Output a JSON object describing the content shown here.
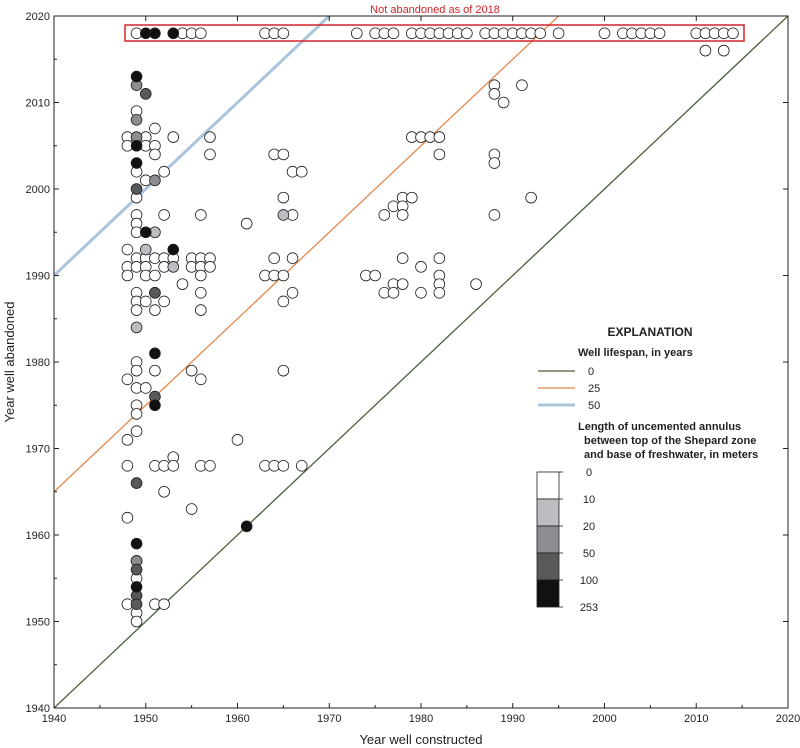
{
  "chart_data": {
    "type": "scatter",
    "xlabel": "Year well constructed",
    "ylabel": "Year well abandoned",
    "xlim": [
      1940,
      2020
    ],
    "ylim": [
      1940,
      2020
    ],
    "x_ticks": [
      1940,
      1950,
      1960,
      1970,
      1980,
      1990,
      2000,
      2010,
      2020
    ],
    "y_ticks": [
      1940,
      1950,
      1960,
      1970,
      1980,
      1990,
      2000,
      2010,
      2020
    ],
    "annotation": "Not abandoned as of 2018",
    "legend": {
      "title": "EXPLANATION",
      "lifespan_title": "Well lifespan, in years",
      "lifespan_lines": [
        {
          "label": "0",
          "offset": 0,
          "color": "#4a5e3a"
        },
        {
          "label": "25",
          "offset": 25,
          "color": "#e3874a"
        },
        {
          "label": "50",
          "offset": 50,
          "color": "#a9c4dc"
        }
      ],
      "annulus_title_lines": [
        "Length of uncemented annulus",
        "between top of the Shepard zone",
        "and base of freshwater, in meters"
      ],
      "annulus_labels": [
        "0",
        "10",
        "20",
        "50",
        "100",
        "253"
      ],
      "annulus_colors": [
        "#ffffff",
        "#bcbdc0",
        "#8c8d90",
        "#58595b",
        "#111111"
      ]
    },
    "series": [
      {
        "class": 0,
        "fill": "#ffffff",
        "points": [
          [
            1949,
            2018
          ],
          [
            1954,
            2018
          ],
          [
            1955,
            2018
          ],
          [
            1956,
            2018
          ],
          [
            1963,
            2018
          ],
          [
            1964,
            2018
          ],
          [
            1965,
            2018
          ],
          [
            1973,
            2018
          ],
          [
            1975,
            2018
          ],
          [
            1976,
            2018
          ],
          [
            1977,
            2018
          ],
          [
            1979,
            2018
          ],
          [
            1980,
            2018
          ],
          [
            1981,
            2018
          ],
          [
            1982,
            2018
          ],
          [
            1983,
            2018
          ],
          [
            1984,
            2018
          ],
          [
            1985,
            2018
          ],
          [
            1987,
            2018
          ],
          [
            1988,
            2018
          ],
          [
            1989,
            2018
          ],
          [
            1990,
            2018
          ],
          [
            1991,
            2018
          ],
          [
            1992,
            2018
          ],
          [
            1993,
            2018
          ],
          [
            1995,
            2018
          ],
          [
            2000,
            2018
          ],
          [
            2002,
            2018
          ],
          [
            2003,
            2018
          ],
          [
            2004,
            2018
          ],
          [
            2005,
            2018
          ],
          [
            2006,
            2018
          ],
          [
            2010,
            2018
          ],
          [
            2011,
            2018
          ],
          [
            2012,
            2018
          ],
          [
            2013,
            2018
          ],
          [
            2014,
            2018
          ],
          [
            2011,
            2016
          ],
          [
            2013,
            2016
          ],
          [
            1988,
            2012
          ],
          [
            1991,
            2012
          ],
          [
            1988,
            2011
          ],
          [
            1989,
            2010
          ],
          [
            1949,
            2009
          ],
          [
            1951,
            2007
          ],
          [
            1948,
            2006
          ],
          [
            1950,
            2006
          ],
          [
            1953,
            2006
          ],
          [
            1957,
            2006
          ],
          [
            1948,
            2005
          ],
          [
            1950,
            2005
          ],
          [
            1951,
            2005
          ],
          [
            1979,
            2006
          ],
          [
            1980,
            2006
          ],
          [
            1981,
            2006
          ],
          [
            1982,
            2006
          ],
          [
            1951,
            2004
          ],
          [
            1957,
            2004
          ],
          [
            1964,
            2004
          ],
          [
            1965,
            2004
          ],
          [
            1982,
            2004
          ],
          [
            1988,
            2004
          ],
          [
            1988,
            2003
          ],
          [
            1949,
            2002
          ],
          [
            1952,
            2002
          ],
          [
            1966,
            2002
          ],
          [
            1967,
            2002
          ],
          [
            1950,
            2001
          ],
          [
            1949,
            1999
          ],
          [
            1965,
            1999
          ],
          [
            1978,
            1999
          ],
          [
            1979,
            1999
          ],
          [
            1992,
            1999
          ],
          [
            1977,
            1998
          ],
          [
            1978,
            1998
          ],
          [
            1949,
            1997
          ],
          [
            1952,
            1997
          ],
          [
            1956,
            1997
          ],
          [
            1966,
            1997
          ],
          [
            1976,
            1997
          ],
          [
            1978,
            1997
          ],
          [
            1988,
            1997
          ],
          [
            1949,
            1996
          ],
          [
            1961,
            1996
          ],
          [
            1949,
            1995
          ],
          [
            1948,
            1993
          ],
          [
            1949,
            1992
          ],
          [
            1950,
            1992
          ],
          [
            1951,
            1992
          ],
          [
            1952,
            1992
          ],
          [
            1953,
            1992
          ],
          [
            1955,
            1992
          ],
          [
            1956,
            1992
          ],
          [
            1957,
            1992
          ],
          [
            1964,
            1992
          ],
          [
            1966,
            1992
          ],
          [
            1978,
            1992
          ],
          [
            1982,
            1992
          ],
          [
            1948,
            1991
          ],
          [
            1949,
            1991
          ],
          [
            1950,
            1991
          ],
          [
            1952,
            1991
          ],
          [
            1955,
            1991
          ],
          [
            1956,
            1991
          ],
          [
            1957,
            1991
          ],
          [
            1980,
            1991
          ],
          [
            1948,
            1990
          ],
          [
            1950,
            1990
          ],
          [
            1951,
            1990
          ],
          [
            1956,
            1990
          ],
          [
            1963,
            1990
          ],
          [
            1964,
            1990
          ],
          [
            1965,
            1990
          ],
          [
            1974,
            1990
          ],
          [
            1975,
            1990
          ],
          [
            1982,
            1990
          ],
          [
            1954,
            1989
          ],
          [
            1977,
            1989
          ],
          [
            1978,
            1989
          ],
          [
            1982,
            1989
          ],
          [
            1986,
            1989
          ],
          [
            1949,
            1988
          ],
          [
            1951,
            1988
          ],
          [
            1956,
            1988
          ],
          [
            1966,
            1988
          ],
          [
            1976,
            1988
          ],
          [
            1977,
            1988
          ],
          [
            1980,
            1988
          ],
          [
            1982,
            1988
          ],
          [
            1949,
            1987
          ],
          [
            1950,
            1987
          ],
          [
            1952,
            1987
          ],
          [
            1965,
            1987
          ],
          [
            1949,
            1986
          ],
          [
            1951,
            1986
          ],
          [
            1956,
            1986
          ],
          [
            1949,
            1980
          ],
          [
            1949,
            1979
          ],
          [
            1951,
            1979
          ],
          [
            1955,
            1979
          ],
          [
            1965,
            1979
          ],
          [
            1948,
            1978
          ],
          [
            1956,
            1978
          ],
          [
            1949,
            1977
          ],
          [
            1950,
            1977
          ],
          [
            1949,
            1975
          ],
          [
            1949,
            1974
          ],
          [
            1949,
            1972
          ],
          [
            1948,
            1971
          ],
          [
            1960,
            1971
          ],
          [
            1953,
            1969
          ],
          [
            1948,
            1968
          ],
          [
            1951,
            1968
          ],
          [
            1952,
            1968
          ],
          [
            1953,
            1968
          ],
          [
            1956,
            1968
          ],
          [
            1957,
            1968
          ],
          [
            1963,
            1968
          ],
          [
            1964,
            1968
          ],
          [
            1965,
            1968
          ],
          [
            1967,
            1968
          ],
          [
            1952,
            1965
          ],
          [
            1955,
            1963
          ],
          [
            1948,
            1962
          ],
          [
            1949,
            1957
          ],
          [
            1949,
            1955
          ],
          [
            1948,
            1952
          ],
          [
            1951,
            1952
          ],
          [
            1952,
            1952
          ],
          [
            1949,
            1951
          ],
          [
            1949,
            1950
          ]
        ]
      },
      {
        "class": 1,
        "fill": "#bcbdc0",
        "points": [
          [
            1950,
            1993
          ],
          [
            1951,
            1995
          ],
          [
            1965,
            1997
          ],
          [
            1953,
            1991
          ],
          [
            1949,
            1984
          ]
        ]
      },
      {
        "class": 2,
        "fill": "#8c8d90",
        "points": [
          [
            1949,
            2012
          ],
          [
            1949,
            2008
          ],
          [
            1949,
            2006
          ],
          [
            1951,
            2001
          ],
          [
            1949,
            1957
          ]
        ]
      },
      {
        "class": 3,
        "fill": "#58595b",
        "points": [
          [
            1950,
            2011
          ],
          [
            1949,
            2000
          ],
          [
            1951,
            1988
          ],
          [
            1951,
            1976
          ],
          [
            1949,
            1966
          ],
          [
            1949,
            1956
          ],
          [
            1949,
            1953
          ],
          [
            1949,
            1952
          ]
        ]
      },
      {
        "class": 4,
        "fill": "#111111",
        "points": [
          [
            1950,
            2018
          ],
          [
            1951,
            2018
          ],
          [
            1953,
            2018
          ],
          [
            1949,
            2013
          ],
          [
            1949,
            2005
          ],
          [
            1949,
            2003
          ],
          [
            1950,
            1995
          ],
          [
            1953,
            1993
          ],
          [
            1951,
            1981
          ],
          [
            1951,
            1975
          ],
          [
            1961,
            1961
          ],
          [
            1949,
            1959
          ],
          [
            1949,
            1954
          ]
        ]
      }
    ]
  }
}
